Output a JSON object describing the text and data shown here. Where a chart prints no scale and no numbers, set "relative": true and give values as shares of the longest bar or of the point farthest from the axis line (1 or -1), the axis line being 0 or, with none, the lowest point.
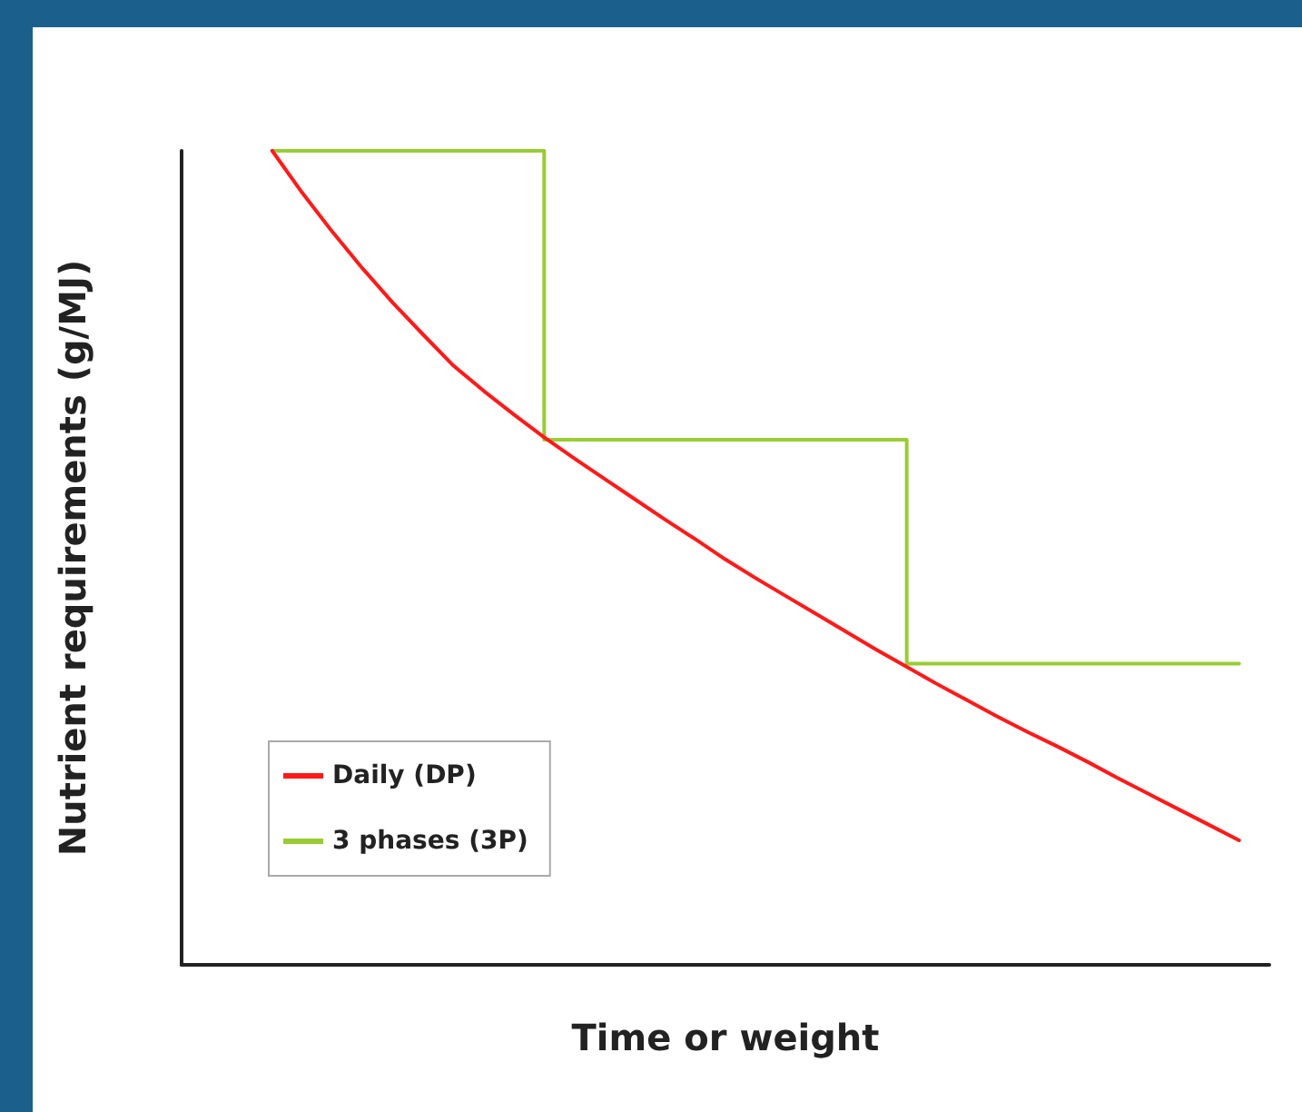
{
  "chart_data": {
    "type": "line",
    "relative": true,
    "xlabel": "Time or weight",
    "ylabel": "Nutrient requirements (g/MJ)",
    "categories": [
      null,
      null,
      null,
      null,
      null,
      null,
      null,
      null,
      null,
      null,
      null,
      null,
      null,
      null,
      null,
      null,
      null,
      null,
      null,
      null,
      null,
      null,
      null,
      null,
      null,
      null,
      null,
      null,
      null,
      null,
      null,
      null,
      null,
      null,
      null,
      null,
      null
    ],
    "series": [
      {
        "name": "Daily (DP)",
        "color": "#ff1a1a",
        "values": [
          null,
          null,
          null,
          1.0,
          0.948,
          0.9,
          0.855,
          0.813,
          0.774,
          0.736,
          0.705,
          0.676,
          0.648,
          0.622,
          0.597,
          0.572,
          0.547,
          0.523,
          0.498,
          0.475,
          0.453,
          0.431,
          0.409,
          0.387,
          0.366,
          0.345,
          0.325,
          0.305,
          0.286,
          0.268,
          0.249,
          0.229,
          0.21,
          0.191,
          0.172,
          0.153,
          null
        ]
      },
      {
        "name": "3 phases (3P)",
        "color": "#99cc33",
        "type": "step",
        "values": [
          null,
          null,
          null,
          1.0,
          1.0,
          1.0,
          1.0,
          1.0,
          1.0,
          1.0,
          1.0,
          1.0,
          0.645,
          0.645,
          0.645,
          0.645,
          0.645,
          0.645,
          0.645,
          0.645,
          0.645,
          0.645,
          0.645,
          0.645,
          0.37,
          0.37,
          0.37,
          0.37,
          0.37,
          0.37,
          0.37,
          0.37,
          0.37,
          0.37,
          0.37,
          0.37,
          null
        ]
      }
    ],
    "legend": "bottom left",
    "grid": false,
    "marker": "none"
  }
}
